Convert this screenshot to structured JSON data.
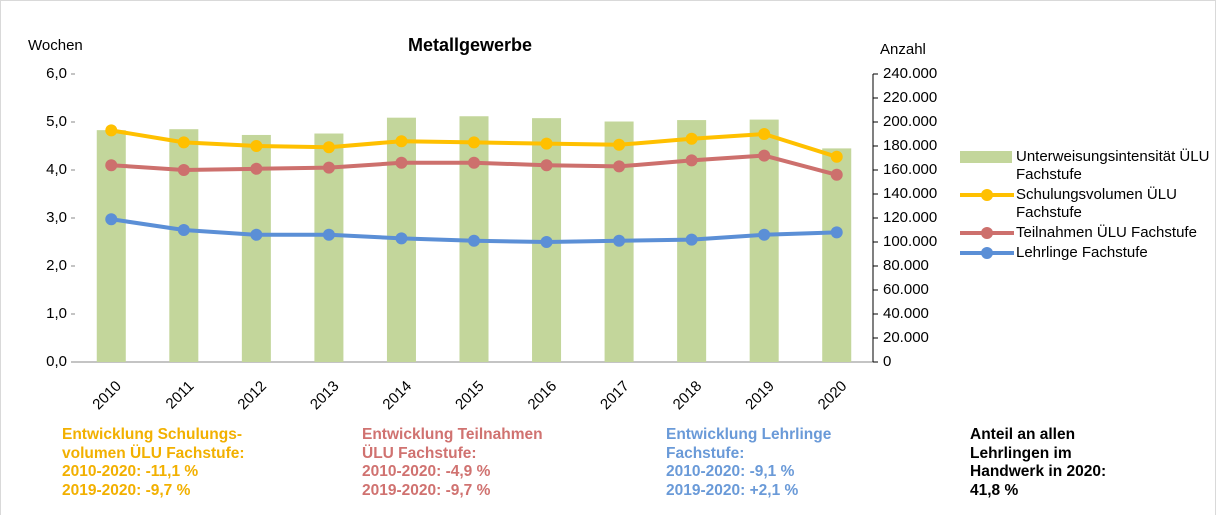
{
  "chart_data": {
    "type": "bar_line",
    "title": "Metallgewerbe",
    "y_label": "Wochen",
    "y2_label": "Anzahl",
    "categories": [
      "2010",
      "2011",
      "2012",
      "2013",
      "2014",
      "2015",
      "2016",
      "2017",
      "2018",
      "2019",
      "2020"
    ],
    "series": [
      {
        "name": "Unterweisungsintensität ÜLU Fachstufe",
        "type": "bar",
        "color": "#c3d69b",
        "values": [
          4.83,
          4.85,
          4.73,
          4.76,
          5.09,
          5.12,
          5.08,
          5.01,
          5.04,
          5.05,
          4.45
        ]
      },
      {
        "name": "Schulungsvolumen ÜLU Fachstufe",
        "type": "line",
        "axis": "y2",
        "color": "#ffc000",
        "values": [
          193000,
          183000,
          180000,
          179000,
          184000,
          183000,
          182000,
          181000,
          186000,
          190000,
          171000
        ]
      },
      {
        "name": "Teilnahmen ÜLU Fachstufe",
        "type": "line",
        "axis": "y2",
        "color": "#cd706d",
        "values": [
          164000,
          160000,
          161000,
          162000,
          166000,
          166000,
          164000,
          163000,
          168000,
          172000,
          156000
        ]
      },
      {
        "name": "Lehrlinge Fachstufe",
        "type": "line",
        "axis": "y2",
        "color": "#5b8fd6",
        "values": [
          119000,
          110000,
          106000,
          106000,
          103000,
          101000,
          100000,
          101000,
          102000,
          106000,
          108000
        ]
      }
    ],
    "ylim": [
      0,
      6
    ],
    "yticks": [
      {
        "value": 0,
        "label": "0,0"
      },
      {
        "value": 1,
        "label": "1,0"
      },
      {
        "value": 2,
        "label": "2,0"
      },
      {
        "value": 3,
        "label": "3,0"
      },
      {
        "value": 4,
        "label": "4,0"
      },
      {
        "value": 5,
        "label": "5,0"
      },
      {
        "value": 6,
        "label": "6,0"
      }
    ],
    "y2lim": [
      0,
      240000
    ],
    "y2ticks": [
      0,
      {
        "value": 20000,
        "label": "20.000"
      },
      {
        "value": 40000,
        "label": "40.000"
      },
      {
        "value": 60000,
        "label": "60.000"
      },
      {
        "value": 80000,
        "label": "80.000"
      },
      {
        "value": 100000,
        "label": "100.000"
      },
      {
        "value": 120000,
        "label": "120.000"
      },
      {
        "value": 140000,
        "label": "140.000"
      },
      {
        "value": 160000,
        "label": "160.000"
      },
      {
        "value": 180000,
        "label": "180.000"
      },
      {
        "value": 200000,
        "label": "200.000"
      },
      {
        "value": 220000,
        "label": "220.000"
      },
      {
        "value": 240000,
        "label": "240.000"
      }
    ],
    "legend": "right",
    "annotations": [
      {
        "color": "#f2b000",
        "lines": [
          "Entwicklung Schulungs-",
          "volumen ÜLU Fachstufe:",
          "2010-2020:  -11,1 %",
          "2019-2020:   -9,7 %"
        ]
      },
      {
        "color": "#d07270",
        "lines": [
          "Entwicklung Teilnahmen",
          "ÜLU Fachstufe:",
          "2010-2020:   -4,9 %",
          "2019-2020:  -9,7 %"
        ]
      },
      {
        "color": "#6a9ad8",
        "lines": [
          "Entwicklung Lehrlinge",
          "Fachstufe:",
          "2010-2020: -9,1 %",
          "2019-2020: +2,1 %"
        ]
      },
      {
        "color": "#000000",
        "lines": [
          "Anteil an allen",
          "Lehrlingen  im",
          "Handwerk in 2020:",
          "41,8 %"
        ]
      }
    ]
  }
}
